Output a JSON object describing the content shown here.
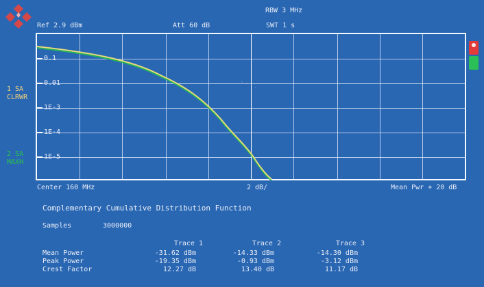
{
  "header": {
    "rbw": "RBW 3 MHz",
    "ref": "Ref  2.9 dBm",
    "att": "Att  60 dB",
    "swt": "SWT 1 s"
  },
  "left_labels": {
    "trace1_a": "1 SA",
    "trace1_b": "CLRWR",
    "trace2_a": "2 SA",
    "trace2_b": "MAXH"
  },
  "plot": {
    "y_labels": [
      "0.1",
      "0.01",
      "1E-3",
      "1E-4",
      "1E-5"
    ],
    "center": "Center 160 MHz",
    "div": "2 dB/",
    "meanpwr": "Mean Pwr + 20 dB"
  },
  "panel": {
    "title": "Complementary Cumulative Distribution Function",
    "samples_label": "Samples",
    "samples_value": "3000000",
    "trace_headers": [
      "Trace 1",
      "Trace 2",
      "Trace 3"
    ],
    "rows": [
      {
        "label": "Mean Power",
        "values": [
          "-31.62 dBm",
          "-14.33 dBm",
          "-14.30 dBm"
        ]
      },
      {
        "label": "Peak Power",
        "values": [
          "-19.35 dBm",
          "-0.93 dBm",
          "-3.12 dBm"
        ]
      },
      {
        "label": "Crest Factor",
        "values": [
          "12.27 dB",
          "13.40 dB",
          "11.17 dB"
        ]
      }
    ]
  },
  "colors": {
    "background": "#2a67b3",
    "trace_yellow": "#efe07a",
    "trace_green": "#23b653",
    "marker_red": "#e33a3a",
    "marker_green": "#2bbf57"
  }
}
